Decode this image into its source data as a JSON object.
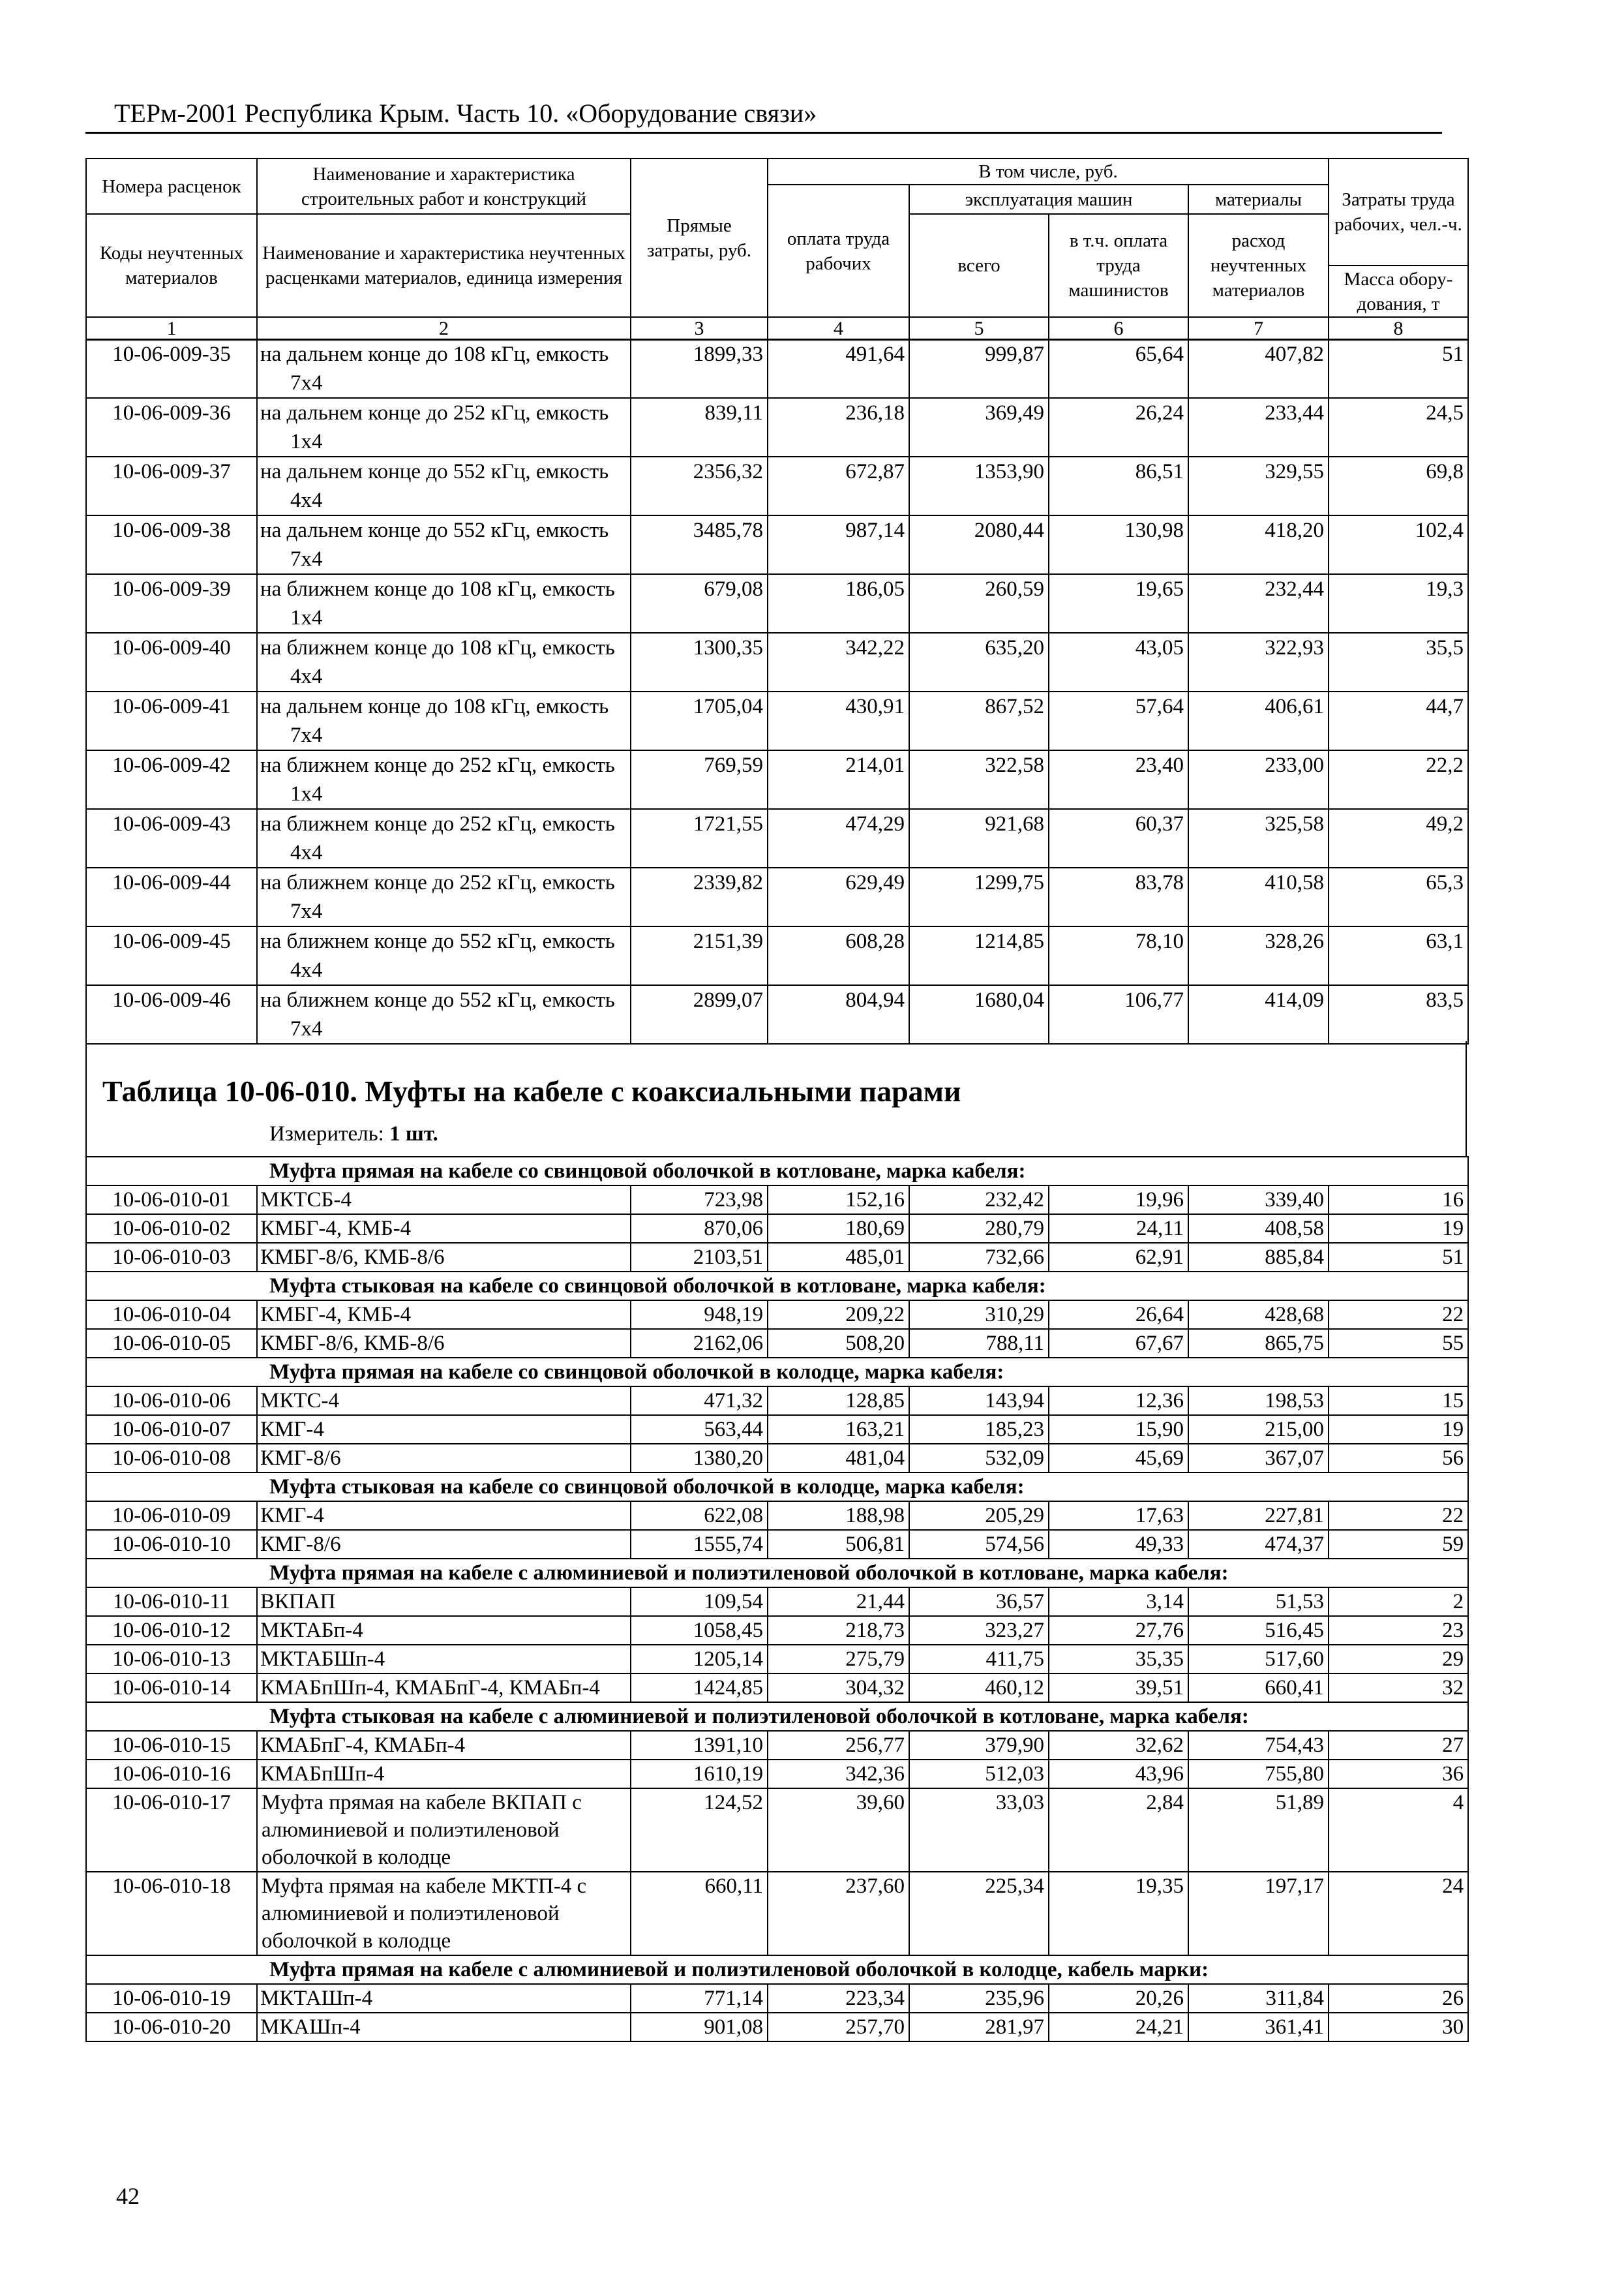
{
  "running_head": "ТЕРм-2001 Республика Крым. Часть 10. «Оборудование связи»",
  "header": {
    "c1_top": "Номера расценок",
    "c1_bottom": "Коды неучтенных материалов",
    "c2_top": "Наименование и характеристика строительных работ и конструкций",
    "c2_bottom": "Наименование и характеристика неучтенных расценками материалов, единица измерения",
    "c3": "Прямые затраты, руб.",
    "group": "В том числе, руб.",
    "c4": "оплата труда рабочих",
    "machines": "эксплуатация машин",
    "c5": "всего",
    "c6": "в т.ч. оплата труда машинистов",
    "materials": "материалы",
    "c7": "расход неучтенных материалов",
    "c8_top": "Затраты труда рабочих, чел.-ч.",
    "c8_bottom": "Масса обору-дования, т",
    "numbers": [
      "1",
      "2",
      "3",
      "4",
      "5",
      "6",
      "7",
      "8"
    ]
  },
  "table1_rows": [
    [
      "10-06-009-35",
      "на дальнем конце до 108 кГц, емкость 7х4",
      "1899,33",
      "491,64",
      "999,87",
      "65,64",
      "407,82",
      "51"
    ],
    [
      "10-06-009-36",
      "на дальнем конце до 252 кГц, емкость 1х4",
      "839,11",
      "236,18",
      "369,49",
      "26,24",
      "233,44",
      "24,5"
    ],
    [
      "10-06-009-37",
      "на дальнем конце до 552 кГц, емкость 4х4",
      "2356,32",
      "672,87",
      "1353,90",
      "86,51",
      "329,55",
      "69,8"
    ],
    [
      "10-06-009-38",
      "на дальнем конце до 552 кГц, емкость 7х4",
      "3485,78",
      "987,14",
      "2080,44",
      "130,98",
      "418,20",
      "102,4"
    ],
    [
      "10-06-009-39",
      "на ближнем конце до 108 кГц, емкость 1х4",
      "679,08",
      "186,05",
      "260,59",
      "19,65",
      "232,44",
      "19,3"
    ],
    [
      "10-06-009-40",
      "на ближнем конце до 108 кГц, емкость 4х4",
      "1300,35",
      "342,22",
      "635,20",
      "43,05",
      "322,93",
      "35,5"
    ],
    [
      "10-06-009-41",
      "на дальнем конце до 108 кГц, емкость 7х4",
      "1705,04",
      "430,91",
      "867,52",
      "57,64",
      "406,61",
      "44,7"
    ],
    [
      "10-06-009-42",
      "на ближнем конце до 252 кГц, емкость 1х4",
      "769,59",
      "214,01",
      "322,58",
      "23,40",
      "233,00",
      "22,2"
    ],
    [
      "10-06-009-43",
      "на ближнем конце до 252 кГц, емкость 4х4",
      "1721,55",
      "474,29",
      "921,68",
      "60,37",
      "325,58",
      "49,2"
    ],
    [
      "10-06-009-44",
      "на ближнем конце до 252 кГц, емкость 7х4",
      "2339,82",
      "629,49",
      "1299,75",
      "83,78",
      "410,58",
      "65,3"
    ],
    [
      "10-06-009-45",
      "на ближнем конце до 552 кГц, емкость 4х4",
      "2151,39",
      "608,28",
      "1214,85",
      "78,10",
      "328,26",
      "63,1"
    ],
    [
      "10-06-009-46",
      "на ближнем конце до 552 кГц, емкость 7х4",
      "2899,07",
      "804,94",
      "1680,04",
      "106,77",
      "414,09",
      "83,5"
    ]
  ],
  "table2": {
    "title": "Таблица 10-06-010. Муфты на кабеле с коаксиальными парами",
    "meter_label": "Измеритель:",
    "meter_value": "1 шт.",
    "rows": [
      {
        "sub": "Муфта прямая на кабеле со свинцовой оболочкой в котловане, марка кабеля:"
      },
      {
        "cells": [
          "10-06-010-01",
          "МКТСБ-4",
          "723,98",
          "152,16",
          "232,42",
          "19,96",
          "339,40",
          "16"
        ]
      },
      {
        "cells": [
          "10-06-010-02",
          "КМБГ-4, КМБ-4",
          "870,06",
          "180,69",
          "280,79",
          "24,11",
          "408,58",
          "19"
        ]
      },
      {
        "cells": [
          "10-06-010-03",
          "КМБГ-8/6, КМБ-8/6",
          "2103,51",
          "485,01",
          "732,66",
          "62,91",
          "885,84",
          "51"
        ]
      },
      {
        "sub": "Муфта стыковая на кабеле со свинцовой оболочкой в котловане, марка кабеля:"
      },
      {
        "cells": [
          "10-06-010-04",
          "КМБГ-4, КМБ-4",
          "948,19",
          "209,22",
          "310,29",
          "26,64",
          "428,68",
          "22"
        ]
      },
      {
        "cells": [
          "10-06-010-05",
          "КМБГ-8/6, КМБ-8/6",
          "2162,06",
          "508,20",
          "788,11",
          "67,67",
          "865,75",
          "55"
        ]
      },
      {
        "sub": "Муфта прямая на кабеле со свинцовой оболочкой в колодце, марка кабеля:"
      },
      {
        "cells": [
          "10-06-010-06",
          "МКТС-4",
          "471,32",
          "128,85",
          "143,94",
          "12,36",
          "198,53",
          "15"
        ]
      },
      {
        "cells": [
          "10-06-010-07",
          "КМГ-4",
          "563,44",
          "163,21",
          "185,23",
          "15,90",
          "215,00",
          "19"
        ]
      },
      {
        "cells": [
          "10-06-010-08",
          "КМГ-8/6",
          "1380,20",
          "481,04",
          "532,09",
          "45,69",
          "367,07",
          "56"
        ]
      },
      {
        "sub": "Муфта стыковая на кабеле со свинцовой оболочкой в колодце, марка кабеля:"
      },
      {
        "cells": [
          "10-06-010-09",
          "КМГ-4",
          "622,08",
          "188,98",
          "205,29",
          "17,63",
          "227,81",
          "22"
        ]
      },
      {
        "cells": [
          "10-06-010-10",
          "КМГ-8/6",
          "1555,74",
          "506,81",
          "574,56",
          "49,33",
          "474,37",
          "59"
        ]
      },
      {
        "sub": "Муфта прямая на кабеле с алюминиевой и полиэтиленовой оболочкой в котловане, марка кабеля:"
      },
      {
        "cells": [
          "10-06-010-11",
          "ВКПАП",
          "109,54",
          "21,44",
          "36,57",
          "3,14",
          "51,53",
          "2"
        ]
      },
      {
        "cells": [
          "10-06-010-12",
          "МКТАБп-4",
          "1058,45",
          "218,73",
          "323,27",
          "27,76",
          "516,45",
          "23"
        ]
      },
      {
        "cells": [
          "10-06-010-13",
          "МКТАБШп-4",
          "1205,14",
          "275,79",
          "411,75",
          "35,35",
          "517,60",
          "29"
        ]
      },
      {
        "cells": [
          "10-06-010-14",
          "КМАБпШп-4, КМАБпГ-4, КМАБп-4",
          "1424,85",
          "304,32",
          "460,12",
          "39,51",
          "660,41",
          "32"
        ]
      },
      {
        "sub": "Муфта стыковая на кабеле с алюминиевой и полиэтиленовой оболочкой в котловане, марка кабеля:"
      },
      {
        "cells": [
          "10-06-010-15",
          "КМАБпГ-4, КМАБп-4",
          "1391,10",
          "256,77",
          "379,90",
          "32,62",
          "754,43",
          "27"
        ]
      },
      {
        "cells": [
          "10-06-010-16",
          "КМАБпШп-4",
          "1610,19",
          "342,36",
          "512,03",
          "43,96",
          "755,80",
          "36"
        ]
      },
      {
        "cells": [
          "10-06-010-17",
          "Муфта прямая на кабеле ВКПАП с алюминиевой и полиэтиленовой оболочкой в колодце",
          "124,52",
          "39,60",
          "33,03",
          "2,84",
          "51,89",
          "4"
        ],
        "plain": true
      },
      {
        "cells": [
          "10-06-010-18",
          "Муфта прямая на кабеле МКТП-4 с алюминиевой и полиэтиленовой оболочкой в колодце",
          "660,11",
          "237,60",
          "225,34",
          "19,35",
          "197,17",
          "24"
        ],
        "plain": true
      },
      {
        "sub": "Муфта прямая на кабеле с алюминиевой и полиэтиленовой оболочкой в колодце, кабель марки:"
      },
      {
        "cells": [
          "10-06-010-19",
          "МКТАШп-4",
          "771,14",
          "223,34",
          "235,96",
          "20,26",
          "311,84",
          "26"
        ]
      },
      {
        "cells": [
          "10-06-010-20",
          "МКАШп-4",
          "901,08",
          "257,70",
          "281,97",
          "24,21",
          "361,41",
          "30"
        ]
      }
    ]
  },
  "page_number": "42"
}
